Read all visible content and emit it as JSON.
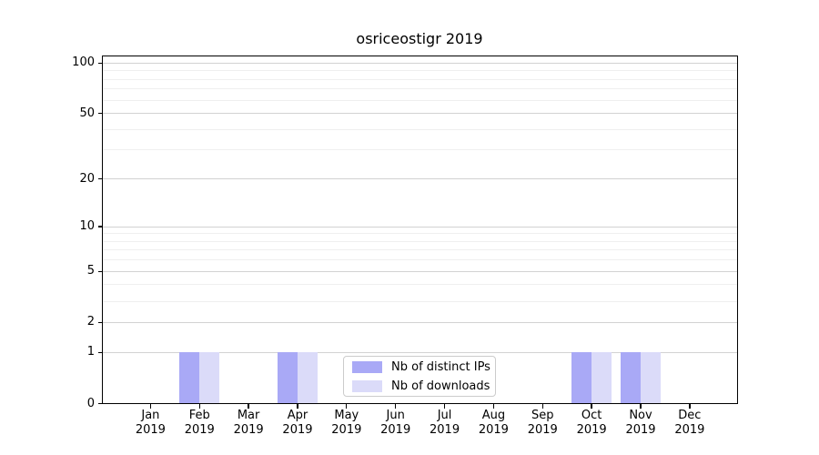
{
  "chart_data": {
    "type": "bar",
    "title": "osriceostigr 2019",
    "categories": [
      "Jan",
      "Feb",
      "Mar",
      "Apr",
      "May",
      "Jun",
      "Jul",
      "Aug",
      "Sep",
      "Oct",
      "Nov",
      "Dec"
    ],
    "tick_year": "2019",
    "series": [
      {
        "name": "Nb of distinct IPs",
        "color": "#a9a9f6",
        "values": [
          0,
          1,
          0,
          1,
          0,
          0,
          0,
          0,
          0,
          1,
          1,
          0
        ]
      },
      {
        "name": "Nb of downloads",
        "color": "#dbdbf9",
        "values": [
          0,
          1,
          0,
          1,
          0,
          0,
          0,
          0,
          0,
          1,
          1,
          0
        ]
      }
    ],
    "yscale": "log1p",
    "ylim": [
      0,
      110
    ],
    "y_major_ticks": [
      0,
      1,
      2,
      5,
      10,
      20,
      50,
      100
    ],
    "y_minor_gridlines": [
      3,
      4,
      6,
      7,
      8,
      9,
      30,
      40,
      60,
      70,
      80,
      90
    ],
    "grid": "horizontal",
    "legend": {
      "position": "lower center inside",
      "items": [
        "Nb of distinct IPs",
        "Nb of downloads"
      ]
    }
  }
}
